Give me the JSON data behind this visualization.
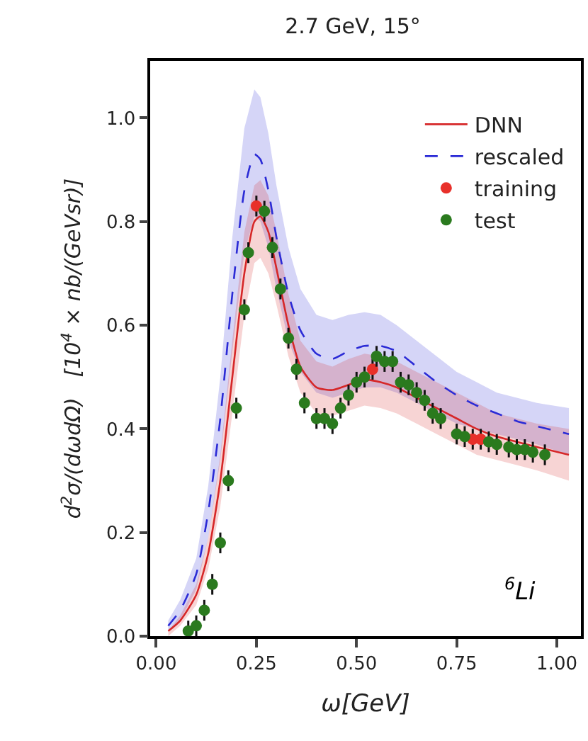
{
  "chart_data": {
    "type": "line",
    "title": "2.7 GeV, 15°",
    "xlabel": "ω[GeV]",
    "ylabel": "d$^{2}$σ/(dωdΩ)   [10$^{4}$ × nb/(GeVsr)]",
    "annotations": [
      "$^{6}$Li"
    ],
    "xlim": [
      -0.015,
      1.06
    ],
    "ylim": [
      0,
      1.11
    ],
    "xticks": [
      {
        "value": 0,
        "label": "0.00"
      },
      {
        "value": 0.25,
        "label": "0.25"
      },
      {
        "value": 0.5,
        "label": "0.50"
      },
      {
        "value": 0.75,
        "label": "0.75"
      },
      {
        "value": 1,
        "label": "1.00"
      }
    ],
    "yticks": [
      {
        "value": 0,
        "label": "0.0"
      },
      0.2,
      0.4,
      0.6,
      0.8,
      {
        "value": 1,
        "label": "1.0"
      }
    ],
    "legend": "top right",
    "series": [
      {
        "name": "DNN",
        "color": "#d62728",
        "line_style": "solid",
        "marker": "none",
        "x": [
          0.03,
          0.06,
          0.1,
          0.13,
          0.16,
          0.19,
          0.22,
          0.245,
          0.26,
          0.28,
          0.3,
          0.33,
          0.36,
          0.4,
          0.44,
          0.48,
          0.52,
          0.56,
          0.6,
          0.65,
          0.7,
          0.75,
          0.8,
          0.85,
          0.9,
          0.95,
          1.03
        ],
        "values": [
          0.01,
          0.03,
          0.08,
          0.16,
          0.3,
          0.5,
          0.7,
          0.8,
          0.81,
          0.78,
          0.71,
          0.6,
          0.52,
          0.48,
          0.475,
          0.485,
          0.495,
          0.49,
          0.48,
          0.46,
          0.44,
          0.42,
          0.4,
          0.385,
          0.375,
          0.365,
          0.35
        ],
        "lower": [
          0.0,
          0.02,
          0.06,
          0.13,
          0.25,
          0.43,
          0.62,
          0.72,
          0.73,
          0.7,
          0.64,
          0.54,
          0.47,
          0.43,
          0.425,
          0.435,
          0.445,
          0.44,
          0.43,
          0.41,
          0.39,
          0.37,
          0.35,
          0.34,
          0.33,
          0.32,
          0.3
        ],
        "upper": [
          0.01,
          0.04,
          0.1,
          0.19,
          0.35,
          0.57,
          0.78,
          0.87,
          0.88,
          0.85,
          0.78,
          0.66,
          0.57,
          0.53,
          0.52,
          0.535,
          0.545,
          0.54,
          0.53,
          0.51,
          0.49,
          0.47,
          0.45,
          0.43,
          0.42,
          0.41,
          0.4
        ]
      },
      {
        "name": "rescaled",
        "color": "#2b2bd6",
        "line_style": "dashed",
        "marker": "none",
        "x": [
          0.03,
          0.06,
          0.1,
          0.13,
          0.16,
          0.19,
          0.22,
          0.245,
          0.26,
          0.28,
          0.3,
          0.33,
          0.36,
          0.4,
          0.44,
          0.48,
          0.52,
          0.56,
          0.6,
          0.65,
          0.7,
          0.75,
          0.8,
          0.85,
          0.9,
          0.95,
          1.03
        ],
        "values": [
          0.02,
          0.05,
          0.12,
          0.24,
          0.42,
          0.66,
          0.86,
          0.93,
          0.92,
          0.86,
          0.77,
          0.66,
          0.59,
          0.545,
          0.535,
          0.55,
          0.56,
          0.56,
          0.55,
          0.52,
          0.49,
          0.465,
          0.445,
          0.43,
          0.415,
          0.405,
          0.39
        ],
        "lower": [
          0.01,
          0.03,
          0.09,
          0.19,
          0.34,
          0.55,
          0.74,
          0.81,
          0.8,
          0.75,
          0.67,
          0.57,
          0.51,
          0.47,
          0.46,
          0.47,
          0.48,
          0.48,
          0.47,
          0.45,
          0.43,
          0.41,
          0.4,
          0.39,
          0.38,
          0.37,
          0.35
        ],
        "upper": [
          0.03,
          0.07,
          0.15,
          0.29,
          0.5,
          0.77,
          0.98,
          1.055,
          1.04,
          0.97,
          0.87,
          0.75,
          0.67,
          0.62,
          0.61,
          0.62,
          0.625,
          0.62,
          0.6,
          0.57,
          0.54,
          0.51,
          0.49,
          0.47,
          0.46,
          0.45,
          0.44
        ]
      },
      {
        "type": "scatter",
        "name": "training",
        "color": "#e8302a",
        "marker": "circle",
        "x": [
          0.25,
          0.54,
          0.79,
          0.81
        ],
        "values": [
          0.83,
          0.515,
          0.38,
          0.38
        ],
        "errors": [
          0.02,
          0.02,
          0.02,
          0.02
        ]
      },
      {
        "type": "scatter",
        "name": "test",
        "color": "#2a7a1e",
        "marker": "circle",
        "x": [
          0.08,
          0.1,
          0.12,
          0.14,
          0.16,
          0.18,
          0.2,
          0.22,
          0.23,
          0.27,
          0.29,
          0.31,
          0.33,
          0.35,
          0.37,
          0.4,
          0.42,
          0.44,
          0.46,
          0.48,
          0.5,
          0.52,
          0.55,
          0.57,
          0.59,
          0.61,
          0.63,
          0.65,
          0.67,
          0.69,
          0.71,
          0.75,
          0.77,
          0.83,
          0.85,
          0.88,
          0.9,
          0.92,
          0.94,
          0.97
        ],
        "values": [
          0.01,
          0.02,
          0.05,
          0.1,
          0.18,
          0.3,
          0.44,
          0.63,
          0.74,
          0.82,
          0.75,
          0.67,
          0.575,
          0.515,
          0.45,
          0.42,
          0.42,
          0.41,
          0.44,
          0.465,
          0.49,
          0.5,
          0.54,
          0.53,
          0.53,
          0.49,
          0.485,
          0.47,
          0.455,
          0.43,
          0.42,
          0.39,
          0.385,
          0.375,
          0.37,
          0.365,
          0.36,
          0.36,
          0.355,
          0.35
        ],
        "errors": [
          0.02,
          0.02,
          0.02,
          0.02,
          0.02,
          0.02,
          0.02,
          0.02,
          0.02,
          0.02,
          0.02,
          0.02,
          0.02,
          0.02,
          0.02,
          0.02,
          0.02,
          0.02,
          0.02,
          0.02,
          0.02,
          0.02,
          0.02,
          0.02,
          0.02,
          0.02,
          0.02,
          0.02,
          0.02,
          0.02,
          0.02,
          0.02,
          0.02,
          0.02,
          0.02,
          0.02,
          0.02,
          0.02,
          0.02,
          0.02
        ]
      }
    ]
  }
}
